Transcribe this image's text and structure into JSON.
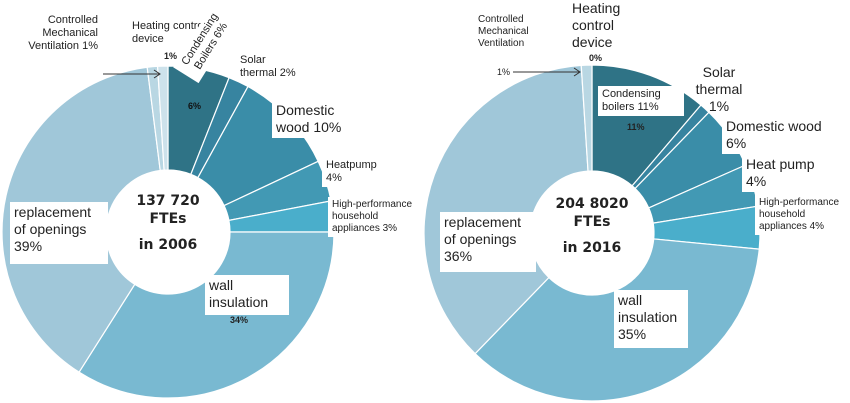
{
  "chart_data": [
    {
      "type": "pie",
      "variant": "donut",
      "center_text": [
        "137 720",
        "FTEs",
        "in 2006"
      ],
      "categories": [
        "Condensing Boilers",
        "Solar thermal",
        "Domestic wood",
        "Heatpump",
        "High-performance household appliances",
        "wall insulation",
        "replacement of openings",
        "Controlled Mechanical Ventilation",
        "Heating control device"
      ],
      "values": [
        6,
        2,
        10,
        4,
        3,
        34,
        39,
        1,
        1
      ],
      "colors": [
        "#2f7386",
        "#3784a0",
        "#3a8da8",
        "#4299b4",
        "#4aaecb",
        "#79b9d1",
        "#a0c7d9",
        "#b9d7e3",
        "#cde2eb"
      ],
      "labels": {
        "cmv": "Controlled Mechanical Ventilation 1%",
        "hcd": "Heating control device",
        "hcd_pct": "1%",
        "cb": "Condensing Boilers 6%",
        "cb_pct": "6%",
        "solar": "Solar thermal 2%",
        "wood": "Domestic wood 10%",
        "hp": "Heatpump 4%",
        "hpa": "High-performance household appliances 3%",
        "repl": "replacement of openings 39%",
        "wall": "wall insulation",
        "wall_pct": "34%"
      }
    },
    {
      "type": "pie",
      "variant": "donut",
      "center_text": [
        "204 8020",
        "FTEs",
        "in 2016"
      ],
      "categories": [
        "Condensing boilers",
        "Solar thermal",
        "Domestic wood",
        "Heat pump",
        "High-performance household appliances",
        "wall insulation",
        "replacement of openings",
        "Controlled Mechanical Ventilation",
        "Heating control device"
      ],
      "values": [
        11,
        1,
        6,
        4,
        4,
        35,
        36,
        1,
        0
      ],
      "colors": [
        "#2f7386",
        "#3784a0",
        "#3a8da8",
        "#4299b4",
        "#4aaecb",
        "#79b9d1",
        "#a0c7d9",
        "#b9d7e3",
        "#cde2eb"
      ],
      "labels": {
        "cmv": "Controlled Mechanical Ventilation",
        "cmv_pct": "1%",
        "hcd": "Heating control device",
        "hcd_pct": "0%",
        "cb": "Condensing boilers 11%",
        "cb_pct": "11%",
        "solar": "Solar thermal 1%",
        "wood": "Domestic wood 6%",
        "hp": "Heat pump 4%",
        "hpa": "High-performance household appliances 4%",
        "repl": "replacement of openings 36%",
        "wall": "wall insulation 35%"
      }
    }
  ]
}
